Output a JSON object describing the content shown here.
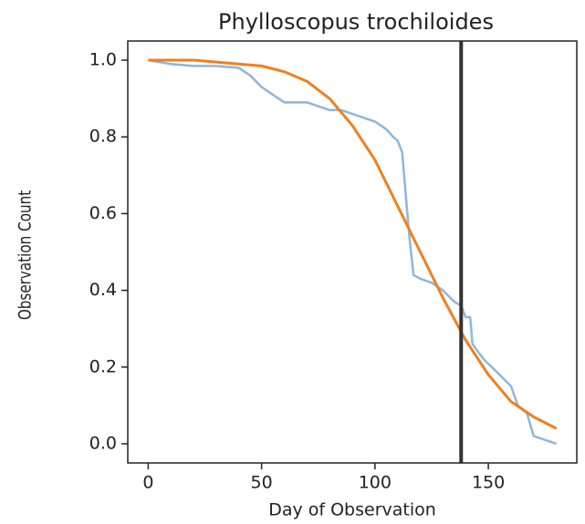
{
  "chart_data": {
    "type": "line",
    "title": "Phylloscopus trochiloides",
    "xlabel": "Day of Observation",
    "ylabel": "Observation Count",
    "xlim": [
      -9,
      189
    ],
    "ylim": [
      -0.05,
      1.05
    ],
    "xticks": [
      0,
      50,
      100,
      150
    ],
    "yticks": [
      {
        "value": 0,
        "label": "0.0"
      },
      0.2,
      0.4,
      0.6,
      0.8,
      {
        "value": 1,
        "label": "1.0"
      }
    ],
    "vline": 138,
    "vline_color": "#333333",
    "series": [
      {
        "color": "#8fb6d9",
        "x": [
          0,
          10,
          20,
          30,
          40,
          45,
          50,
          55,
          60,
          70,
          75,
          80,
          85,
          90,
          95,
          100,
          105,
          108,
          110,
          112,
          114,
          115,
          117,
          120,
          125,
          130,
          135,
          138,
          140,
          142,
          143,
          148,
          155,
          160,
          163,
          167,
          170,
          175,
          180
        ],
        "values": [
          1.0,
          0.99,
          0.985,
          0.985,
          0.98,
          0.96,
          0.93,
          0.91,
          0.89,
          0.89,
          0.88,
          0.87,
          0.87,
          0.86,
          0.85,
          0.84,
          0.82,
          0.8,
          0.79,
          0.76,
          0.62,
          0.55,
          0.44,
          0.43,
          0.42,
          0.4,
          0.37,
          0.36,
          0.33,
          0.33,
          0.26,
          0.22,
          0.18,
          0.15,
          0.1,
          0.08,
          0.02,
          0.01,
          0.0
        ]
      },
      {
        "color": "#f07f1f",
        "x": [
          0,
          10,
          20,
          30,
          40,
          50,
          60,
          70,
          80,
          90,
          100,
          110,
          120,
          130,
          140,
          150,
          160,
          170,
          180
        ],
        "values": [
          1.0,
          1.0,
          1.0,
          0.995,
          0.99,
          0.985,
          0.97,
          0.945,
          0.9,
          0.83,
          0.74,
          0.62,
          0.5,
          0.38,
          0.27,
          0.18,
          0.11,
          0.07,
          0.04
        ]
      }
    ]
  }
}
